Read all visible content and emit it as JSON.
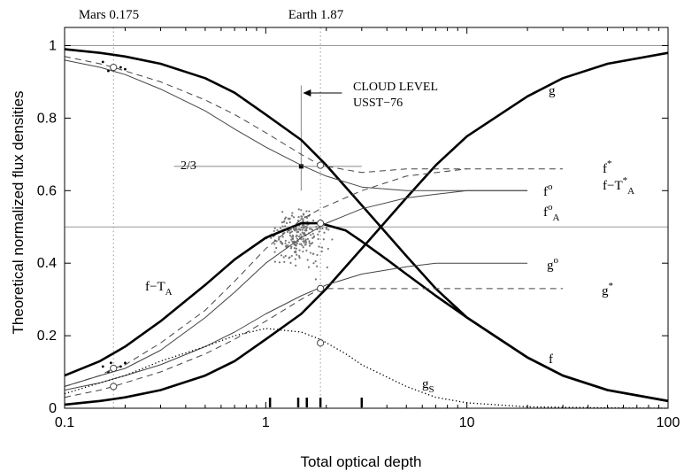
{
  "chart_data": {
    "type": "line",
    "title": "",
    "xlabel": "Total optical depth",
    "ylabel": "Theoretical normalized flux densities",
    "x_scale": "log",
    "xlim": [
      0.1,
      100
    ],
    "ylim": [
      0,
      1.05
    ],
    "x_ticks": [
      {
        "value": 0.1,
        "label": "0.1"
      },
      {
        "value": 1,
        "label": "1"
      },
      {
        "value": 10,
        "label": "10"
      },
      {
        "value": 100,
        "label": "100"
      }
    ],
    "y_ticks": [
      {
        "value": 0,
        "label": "0"
      },
      {
        "value": 0.2,
        "label": "0.2"
      },
      {
        "value": 0.4,
        "label": "0.4"
      },
      {
        "value": 0.6,
        "label": "0.6"
      },
      {
        "value": 0.8,
        "label": "0.8"
      },
      {
        "value": 1,
        "label": "1"
      }
    ],
    "top_markers": [
      {
        "label": "Mars 0.175",
        "x": 0.175
      },
      {
        "label": "Earth 1.87",
        "x": 1.87
      }
    ],
    "reference_lines": {
      "horizontal": [
        1.0,
        0.5
      ]
    },
    "annotations": {
      "cloud_level": {
        "line1": "CLOUD LEVEL",
        "line2": "USST−76",
        "x": 1.5
      },
      "two_thirds": {
        "label": "2/3",
        "x": 1.5,
        "y": 0.667
      }
    },
    "rug_x": [
      1.05,
      1.45,
      1.6,
      1.87,
      3.0
    ],
    "series": [
      {
        "name": "g",
        "style": "thick",
        "x": [
          0.1,
          0.15,
          0.2,
          0.3,
          0.5,
          0.7,
          1,
          1.5,
          2,
          3,
          5,
          7,
          10,
          20,
          30,
          50,
          100
        ],
        "values": [
          0.01,
          0.02,
          0.03,
          0.05,
          0.09,
          0.13,
          0.19,
          0.26,
          0.33,
          0.44,
          0.58,
          0.67,
          0.75,
          0.86,
          0.91,
          0.95,
          0.98
        ]
      },
      {
        "name": "f",
        "style": "thick",
        "x": [
          0.1,
          0.15,
          0.2,
          0.3,
          0.5,
          0.7,
          1,
          1.5,
          2,
          3,
          5,
          7,
          10,
          20,
          30,
          50,
          100
        ],
        "values": [
          0.99,
          0.98,
          0.97,
          0.95,
          0.91,
          0.87,
          0.81,
          0.74,
          0.67,
          0.56,
          0.42,
          0.33,
          0.25,
          0.14,
          0.09,
          0.05,
          0.02
        ]
      },
      {
        "name": "f−T",
        "sub": "A",
        "style": "thick",
        "x": [
          0.1,
          0.15,
          0.2,
          0.3,
          0.5,
          0.7,
          1,
          1.5,
          1.87,
          2.5,
          3,
          4,
          5,
          7,
          10,
          20,
          30,
          50,
          100
        ],
        "values": [
          0.09,
          0.13,
          0.17,
          0.24,
          0.34,
          0.41,
          0.47,
          0.51,
          0.51,
          0.49,
          0.46,
          0.41,
          0.37,
          0.31,
          0.25,
          0.14,
          0.09,
          0.05,
          0.02
        ]
      },
      {
        "name": "f",
        "sup": "*",
        "style": "dashed",
        "x": [
          0.1,
          0.15,
          0.175,
          0.2,
          0.3,
          0.5,
          0.7,
          1,
          1.5,
          1.87,
          3,
          5,
          10,
          20,
          30
        ],
        "values": [
          0.97,
          0.95,
          0.94,
          0.93,
          0.9,
          0.85,
          0.81,
          0.76,
          0.7,
          0.67,
          0.65,
          0.66,
          0.66,
          0.66,
          0.66
        ]
      },
      {
        "name": "f",
        "sup": "o",
        "style": "thin",
        "x": [
          0.1,
          0.15,
          0.2,
          0.3,
          0.5,
          0.7,
          1,
          1.5,
          2,
          3,
          5,
          7,
          10,
          20
        ],
        "values": [
          0.96,
          0.94,
          0.92,
          0.88,
          0.82,
          0.77,
          0.72,
          0.67,
          0.64,
          0.61,
          0.6,
          0.6,
          0.6,
          0.6
        ]
      },
      {
        "name": "f−T",
        "sup": "*",
        "sub": "A",
        "style": "dashed",
        "x": [
          0.1,
          0.15,
          0.175,
          0.2,
          0.3,
          0.5,
          0.7,
          1,
          1.5,
          1.87,
          3,
          5,
          10
        ],
        "values": [
          0.06,
          0.09,
          0.11,
          0.12,
          0.18,
          0.27,
          0.35,
          0.44,
          0.52,
          0.55,
          0.6,
          0.64,
          0.66
        ]
      },
      {
        "name": "f",
        "sup": "o",
        "sub": "A",
        "style": "thin",
        "x": [
          0.1,
          0.15,
          0.2,
          0.3,
          0.5,
          0.7,
          1,
          1.5,
          2,
          3,
          5,
          7,
          10,
          20
        ],
        "values": [
          0.06,
          0.09,
          0.11,
          0.16,
          0.25,
          0.32,
          0.4,
          0.47,
          0.51,
          0.55,
          0.58,
          0.59,
          0.6,
          0.6
        ]
      },
      {
        "name": "g",
        "sup": "o",
        "style": "thin",
        "x": [
          0.1,
          0.15,
          0.2,
          0.3,
          0.5,
          0.7,
          1,
          1.5,
          2,
          3,
          5,
          7,
          10,
          20
        ],
        "values": [
          0.05,
          0.07,
          0.09,
          0.12,
          0.17,
          0.21,
          0.26,
          0.31,
          0.34,
          0.37,
          0.39,
          0.4,
          0.4,
          0.4
        ]
      },
      {
        "name": "g",
        "sup": "*",
        "style": "dashed",
        "x": [
          0.1,
          0.15,
          0.175,
          0.2,
          0.3,
          0.5,
          0.7,
          1,
          1.5,
          1.87,
          3,
          5,
          10,
          20,
          30
        ],
        "values": [
          0.03,
          0.05,
          0.06,
          0.07,
          0.1,
          0.15,
          0.19,
          0.24,
          0.3,
          0.33,
          0.33,
          0.33,
          0.33,
          0.33,
          0.33
        ]
      },
      {
        "name": "g",
        "sub": "S",
        "style": "dotted",
        "x": [
          0.1,
          0.15,
          0.2,
          0.3,
          0.5,
          0.7,
          1,
          1.5,
          1.87,
          2.5,
          3,
          5,
          7,
          10,
          20,
          50,
          100
        ],
        "values": [
          0.04,
          0.07,
          0.09,
          0.13,
          0.17,
          0.2,
          0.22,
          0.21,
          0.19,
          0.15,
          0.12,
          0.06,
          0.03,
          0.015,
          0.004,
          0.001,
          0.0
        ]
      }
    ],
    "circle_markers": [
      {
        "x": 0.175,
        "y": 0.94
      },
      {
        "x": 0.175,
        "y": 0.11
      },
      {
        "x": 0.175,
        "y": 0.06
      },
      {
        "x": 1.87,
        "y": 0.67
      },
      {
        "x": 1.87,
        "y": 0.51
      },
      {
        "x": 1.87,
        "y": 0.33
      },
      {
        "x": 1.87,
        "y": 0.18
      }
    ]
  }
}
